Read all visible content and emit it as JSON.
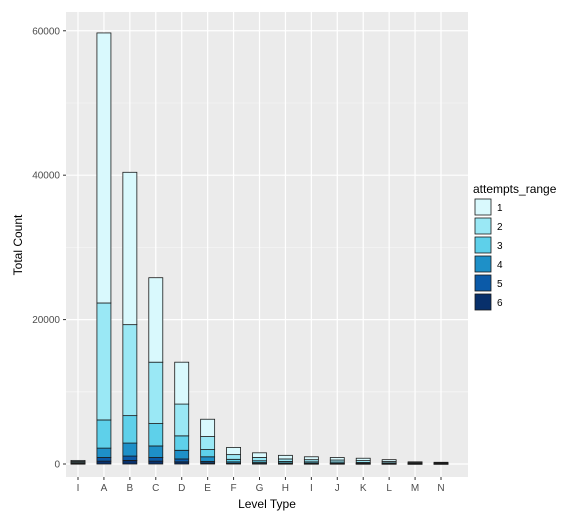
{
  "chart_data": {
    "type": "bar",
    "stacked": true,
    "xlabel": "Level Type",
    "ylabel": "Total Count",
    "categories": [
      "I",
      "A",
      "B",
      "C",
      "D",
      "E",
      "F",
      "G",
      "H",
      "I",
      "J",
      "K",
      "L",
      "M",
      "N"
    ],
    "y_ticks": [
      0,
      20000,
      40000,
      60000
    ],
    "y_tick_labels": [
      "0",
      "20000",
      "40000",
      "60000"
    ],
    "ylim": [
      -1800,
      62600
    ],
    "grid": true,
    "legend": {
      "title": "attempts_range",
      "placement": "right"
    },
    "series": [
      {
        "name": "6",
        "color": "#08306b",
        "values": [
          20,
          400,
          500,
          400,
          300,
          150,
          40,
          30,
          20,
          15,
          15,
          10,
          10,
          5,
          5
        ]
      },
      {
        "name": "5",
        "color": "#0b5aa8",
        "values": [
          30,
          500,
          600,
          500,
          400,
          200,
          60,
          40,
          30,
          25,
          20,
          15,
          10,
          5,
          5
        ]
      },
      {
        "name": "4",
        "color": "#1e90c8",
        "values": [
          50,
          1300,
          1800,
          1600,
          1200,
          650,
          200,
          130,
          100,
          80,
          70,
          60,
          40,
          20,
          15
        ]
      },
      {
        "name": "3",
        "color": "#5ed0ea",
        "values": [
          100,
          3900,
          3800,
          3100,
          2000,
          1000,
          350,
          250,
          200,
          180,
          165,
          140,
          100,
          50,
          40
        ]
      },
      {
        "name": "2",
        "color": "#9ae8f5",
        "values": [
          150,
          16200,
          12600,
          8500,
          4400,
          1800,
          650,
          450,
          350,
          300,
          280,
          250,
          180,
          100,
          75
        ]
      },
      {
        "name": "1",
        "color": "#d9f9fd",
        "values": [
          150,
          37400,
          21100,
          11700,
          5800,
          2400,
          1000,
          650,
          500,
          400,
          350,
          325,
          260,
          120,
          100
        ]
      }
    ],
    "legend_order": [
      "1",
      "2",
      "3",
      "4",
      "5",
      "6"
    ]
  }
}
